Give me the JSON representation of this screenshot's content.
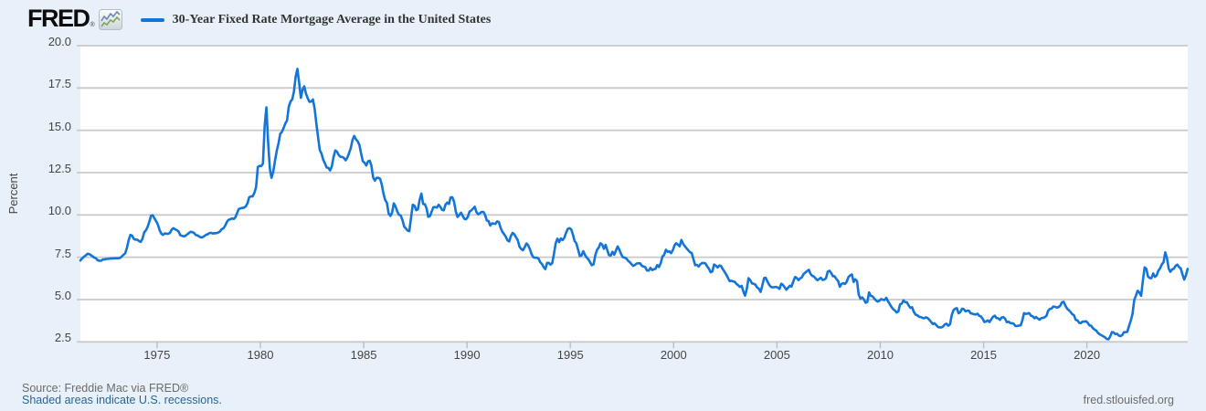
{
  "header": {
    "logo_text": "FRED",
    "logo_reg": "®"
  },
  "chart_data": {
    "type": "line",
    "title": "30-Year Fixed Rate Mortgage Average in the United States",
    "xlabel": "",
    "ylabel": "Percent",
    "grid": "horizontal",
    "legend_position": "top-left",
    "x_domain": [
      1971.29,
      2024.88
    ],
    "y_domain": [
      2.5,
      20.0
    ],
    "y_ticks": [
      2.5,
      5.0,
      7.5,
      10.0,
      12.5,
      15.0,
      17.5,
      20.0
    ],
    "x_ticks": [
      1975,
      1980,
      1985,
      1990,
      1995,
      2000,
      2005,
      2010,
      2015,
      2020
    ],
    "line_color": "#1475d8",
    "series": [
      {
        "name": "30-Year Fixed Rate Mortgage Average in the United States",
        "frequency": "monthly",
        "start_year": 1971,
        "start_month": 4,
        "unit": "Percent",
        "values": [
          7.31,
          7.43,
          7.53,
          7.6,
          7.7,
          7.69,
          7.63,
          7.55,
          7.48,
          7.44,
          7.32,
          7.29,
          7.29,
          7.37,
          7.37,
          7.4,
          7.4,
          7.42,
          7.42,
          7.43,
          7.44,
          7.44,
          7.44,
          7.46,
          7.54,
          7.65,
          7.73,
          8.05,
          8.5,
          8.82,
          8.77,
          8.58,
          8.54,
          8.54,
          8.46,
          8.41,
          8.58,
          8.97,
          9.09,
          9.28,
          9.59,
          9.96,
          9.98,
          9.79,
          9.62,
          9.43,
          9.1,
          8.89,
          8.82,
          8.91,
          8.89,
          8.89,
          8.94,
          9.13,
          9.22,
          9.15,
          9.1,
          9.02,
          8.81,
          8.76,
          8.73,
          8.77,
          8.85,
          8.93,
          9.0,
          8.98,
          8.93,
          8.81,
          8.79,
          8.72,
          8.67,
          8.69,
          8.75,
          8.83,
          8.86,
          8.94,
          8.94,
          8.9,
          8.92,
          8.92,
          8.96,
          9.02,
          9.16,
          9.2,
          9.36,
          9.57,
          9.71,
          9.74,
          9.79,
          9.76,
          9.86,
          10.11,
          10.35,
          10.39,
          10.41,
          10.43,
          10.5,
          10.69,
          11.04,
          11.09,
          11.09,
          11.3,
          11.64,
          12.83,
          12.9,
          12.88,
          13.04,
          15.28,
          16.35,
          14.26,
          12.71,
          12.19,
          12.56,
          13.2,
          13.79,
          14.21,
          14.79,
          14.9,
          15.13,
          15.4,
          15.58,
          16.4,
          16.7,
          16.83,
          17.28,
          18.16,
          18.63,
          17.82,
          16.92,
          17.4,
          17.6,
          17.16,
          16.89,
          16.68,
          16.7,
          16.82,
          16.27,
          15.43,
          14.61,
          13.83,
          13.62,
          13.25,
          13.04,
          12.8,
          12.78,
          12.63,
          12.87,
          13.43,
          13.81,
          13.73,
          13.54,
          13.44,
          13.42,
          13.37,
          13.23,
          13.39,
          13.65,
          13.94,
          14.42,
          14.67,
          14.47,
          14.35,
          14.13,
          13.64,
          13.18,
          13.08,
          12.92,
          13.17,
          13.2,
          12.91,
          12.22,
          12.03,
          12.19,
          12.19,
          12.14,
          11.78,
          11.26,
          10.88,
          10.71,
          10.08,
          9.94,
          10.14,
          10.68,
          10.51,
          10.2,
          10.01,
          9.97,
          9.7,
          9.31,
          9.2,
          9.08,
          9.04,
          9.83,
          10.6,
          10.54,
          10.28,
          10.33,
          10.89,
          11.26,
          10.65,
          10.64,
          10.38,
          9.89,
          9.93,
          10.2,
          10.46,
          10.46,
          10.43,
          10.6,
          10.48,
          10.3,
          10.27,
          10.61,
          10.73,
          10.65,
          11.03,
          11.05,
          10.77,
          10.2,
          9.88,
          9.99,
          10.13,
          9.95,
          9.77,
          9.74,
          9.9,
          10.2,
          10.27,
          10.37,
          10.48,
          10.16,
          10.04,
          10.1,
          10.18,
          10.18,
          10.01,
          9.67,
          9.64,
          9.37,
          9.5,
          9.49,
          9.47,
          9.62,
          9.58,
          9.24,
          9.01,
          8.86,
          8.71,
          8.5,
          8.43,
          8.76,
          8.94,
          8.85,
          8.67,
          8.51,
          8.13,
          7.98,
          7.92,
          8.09,
          8.31,
          8.21,
          7.99,
          7.68,
          7.5,
          7.47,
          7.47,
          7.42,
          7.21,
          7.11,
          6.92,
          6.8,
          7.16,
          7.17,
          7.06,
          7.15,
          7.68,
          8.32,
          8.6,
          8.4,
          8.61,
          8.51,
          8.64,
          8.93,
          9.17,
          9.22,
          9.15,
          8.83,
          8.46,
          8.32,
          7.96,
          7.57,
          7.61,
          7.86,
          7.64,
          7.48,
          7.38,
          7.2,
          7.03,
          7.08,
          7.62,
          7.93,
          8.07,
          8.32,
          8.25,
          8.0,
          8.23,
          7.92,
          7.62,
          7.6,
          7.82,
          7.65,
          7.9,
          8.14,
          7.94,
          7.69,
          7.5,
          7.48,
          7.43,
          7.29,
          7.21,
          7.1,
          6.99,
          7.04,
          7.13,
          7.14,
          7.14,
          7.0,
          6.95,
          6.92,
          6.72,
          6.71,
          6.87,
          6.74,
          6.79,
          6.81,
          7.04,
          6.92,
          7.15,
          7.55,
          7.63,
          7.94,
          7.82,
          7.85,
          7.74,
          7.91,
          8.21,
          8.33,
          8.24,
          8.15,
          8.52,
          8.29,
          8.15,
          8.03,
          7.91,
          7.8,
          7.75,
          7.38,
          7.03,
          7.05,
          6.95,
          7.08,
          7.15,
          7.16,
          7.13,
          6.95,
          6.82,
          6.62,
          6.66,
          7.07,
          7.0,
          6.89,
          7.01,
          6.99,
          6.81,
          6.65,
          6.49,
          6.29,
          6.09,
          6.11,
          6.07,
          6.05,
          5.92,
          5.84,
          5.75,
          5.81,
          5.48,
          5.23,
          5.63,
          6.26,
          6.15,
          5.95,
          5.93,
          5.88,
          5.71,
          5.64,
          5.45,
          5.83,
          6.27,
          6.29,
          6.06,
          5.87,
          5.75,
          5.72,
          5.73,
          5.75,
          5.71,
          5.63,
          5.93,
          5.86,
          5.72,
          5.58,
          5.7,
          5.82,
          5.77,
          6.07,
          6.33,
          6.27,
          6.15,
          6.25,
          6.32,
          6.51,
          6.6,
          6.68,
          6.76,
          6.52,
          6.4,
          6.36,
          6.24,
          6.14,
          6.22,
          6.29,
          6.16,
          6.18,
          6.26,
          6.66,
          6.7,
          6.57,
          6.38,
          6.38,
          6.21,
          6.1,
          5.76,
          5.92,
          5.97,
          5.92,
          6.04,
          6.32,
          6.43,
          6.48,
          6.04,
          6.2,
          6.09,
          5.29,
          5.05,
          5.13,
          5.0,
          4.81,
          4.86,
          5.42,
          5.22,
          5.19,
          5.06,
          4.95,
          4.88,
          4.93,
          5.03,
          4.99,
          4.97,
          5.1,
          4.89,
          4.74,
          4.56,
          4.43,
          4.35,
          4.23,
          4.3,
          4.71,
          4.76,
          4.95,
          4.84,
          4.84,
          4.64,
          4.51,
          4.55,
          4.27,
          4.11,
          4.07,
          3.99,
          3.96,
          3.92,
          3.89,
          3.95,
          3.91,
          3.8,
          3.68,
          3.55,
          3.6,
          3.5,
          3.38,
          3.35,
          3.35,
          3.41,
          3.53,
          3.57,
          3.45,
          3.54,
          4.07,
          4.37,
          4.46,
          4.49,
          4.19,
          4.26,
          4.46,
          4.43,
          4.3,
          4.34,
          4.34,
          4.19,
          4.16,
          4.13,
          4.12,
          4.16,
          4.04,
          4.0,
          3.86,
          3.67,
          3.71,
          3.77,
          3.67,
          3.84,
          3.98,
          4.05,
          3.91,
          3.89,
          3.8,
          3.94,
          3.96,
          3.87,
          3.66,
          3.69,
          3.61,
          3.6,
          3.57,
          3.44,
          3.44,
          3.46,
          3.47,
          3.77,
          4.2,
          4.15,
          4.17,
          4.2,
          4.05,
          4.01,
          3.9,
          3.97,
          3.88,
          3.81,
          3.9,
          3.92,
          3.95,
          4.03,
          4.33,
          4.44,
          4.47,
          4.59,
          4.57,
          4.53,
          4.55,
          4.63,
          4.83,
          4.87,
          4.64,
          4.46,
          4.37,
          4.27,
          4.14,
          4.07,
          3.8,
          3.77,
          3.62,
          3.61,
          3.69,
          3.7,
          3.72,
          3.62,
          3.47,
          3.45,
          3.31,
          3.23,
          3.16,
          3.02,
          2.94,
          2.89,
          2.83,
          2.77,
          2.67,
          2.65,
          2.81,
          3.08,
          3.06,
          2.96,
          2.98,
          2.87,
          2.84,
          2.9,
          3.07,
          3.07,
          3.1,
          3.45,
          3.76,
          4.17,
          4.98,
          5.23,
          5.52,
          5.41,
          5.22,
          6.11,
          6.9,
          6.81,
          6.36,
          6.27,
          6.26,
          6.54,
          6.34,
          6.43,
          6.71,
          6.84,
          7.07,
          7.2,
          7.79,
          7.44,
          6.82,
          6.64,
          6.78,
          6.82,
          6.99,
          7.06,
          6.92,
          6.85,
          6.5,
          6.18,
          6.43,
          6.81
        ]
      }
    ]
  },
  "footer": {
    "source": "Source: Freddie Mac via FRED®",
    "recession_note": "Shaded areas indicate U.S. recessions.",
    "site_link": "fred.stlouisfed.org"
  },
  "colors": {
    "background": "#e8f1f9",
    "plot_bg": "#ffffff",
    "gridline": "#c9c9c9",
    "axis_text": "#444444",
    "line": "#1475d8",
    "legend_text": "#333333",
    "source_text": "#6b6b6b",
    "link": "#2a6496"
  }
}
